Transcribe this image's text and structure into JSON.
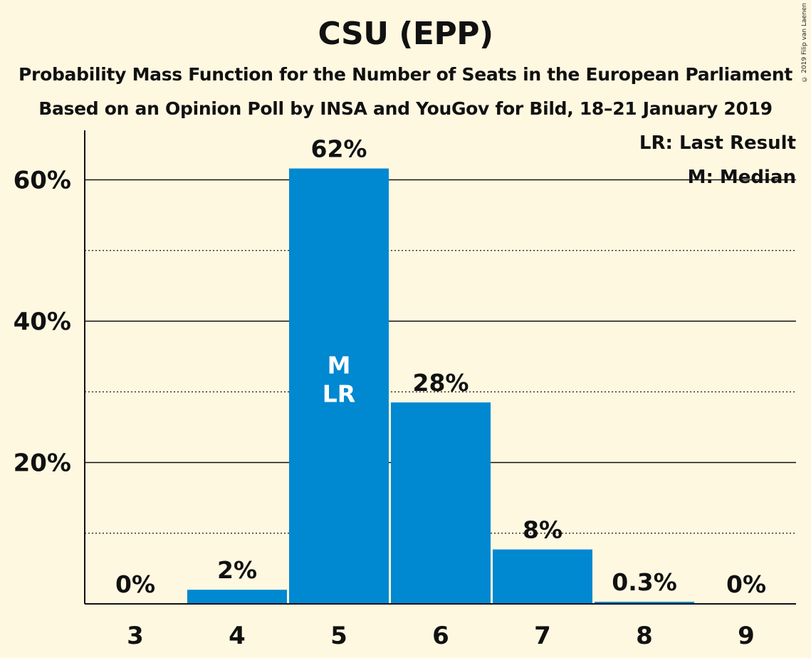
{
  "title": "CSU (EPP)",
  "subtitle_1": "Probability Mass Function for the Number of Seats in the European Parliament",
  "subtitle_2": "Based on an Opinion Poll by INSA and YouGov for Bild, 18–21 January 2019",
  "copyright": "© 2019 Filip van Laenen",
  "legend": {
    "last_result": "LR: Last Result",
    "median": "M: Median"
  },
  "colors": {
    "bar": "#0088d1",
    "background": "#fff8e1",
    "axis": "#111111"
  },
  "chart_data": {
    "type": "bar",
    "categories": [
      "3",
      "4",
      "5",
      "6",
      "7",
      "8",
      "9"
    ],
    "values": [
      0,
      2,
      61.6,
      28.5,
      7.7,
      0.3,
      0
    ],
    "data_labels": [
      "0%",
      "2%",
      "62%",
      "28%",
      "8%",
      "0.3%",
      "0%"
    ],
    "ylim": [
      0,
      67
    ],
    "yticks": [
      20,
      40,
      60
    ],
    "ytick_labels": [
      "20%",
      "40%",
      "60%"
    ],
    "minor_gridlines": [
      10,
      30,
      50
    ],
    "median_category": "5",
    "last_result_category": "5",
    "bar_annotations": {
      "median": "M",
      "last_result": "LR"
    },
    "grid": true,
    "legend_position": "top-right"
  }
}
